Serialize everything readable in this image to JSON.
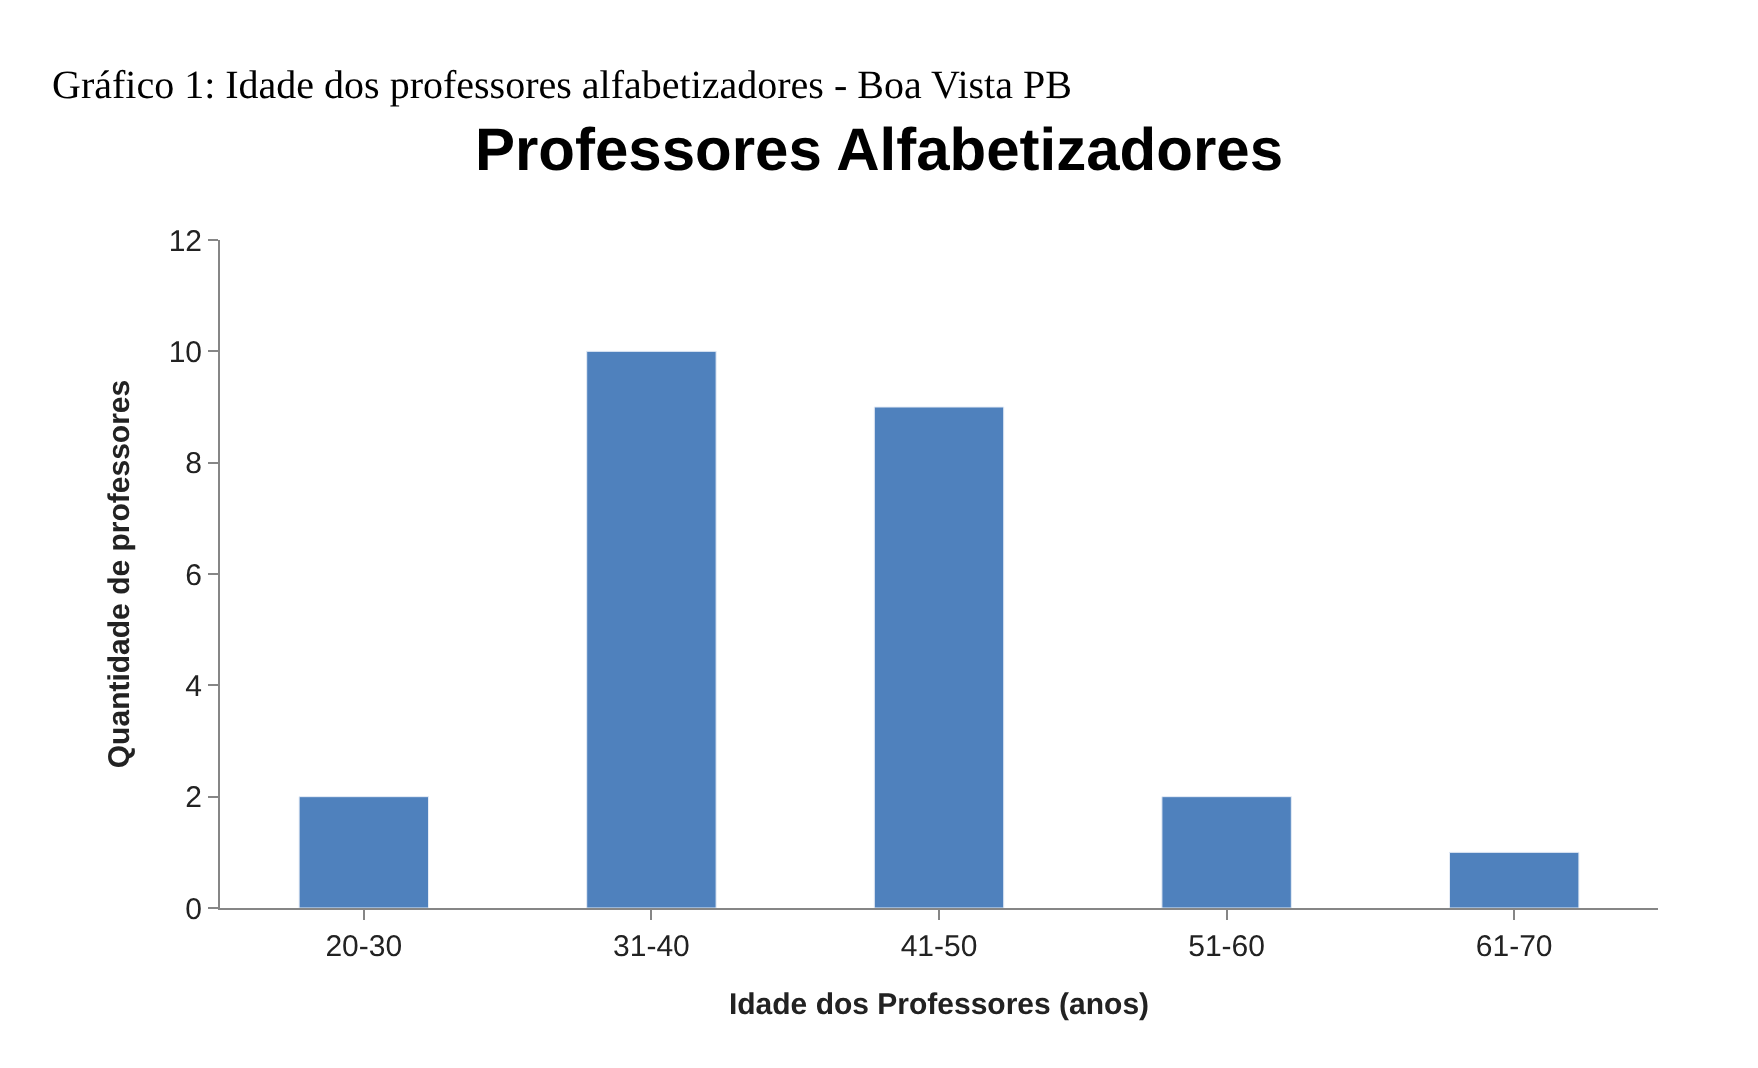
{
  "chart_data": {
    "type": "bar",
    "title": "Professores Alfabetizadores",
    "xlabel": "Idade dos Professores (anos)",
    "ylabel": "Quantidade de professores",
    "categories": [
      "20-30",
      "31-40",
      "41-50",
      "51-60",
      "61-70"
    ],
    "values": [
      2,
      10,
      9,
      2,
      1
    ],
    "color": "#4f81bd",
    "ylim": [
      0,
      12
    ],
    "yticks": [
      0,
      2,
      4,
      6,
      8,
      10,
      12
    ],
    "annotations": [
      "Gráfico 1: Idade dos professores alfabetizadores - Boa Vista PB"
    ]
  }
}
